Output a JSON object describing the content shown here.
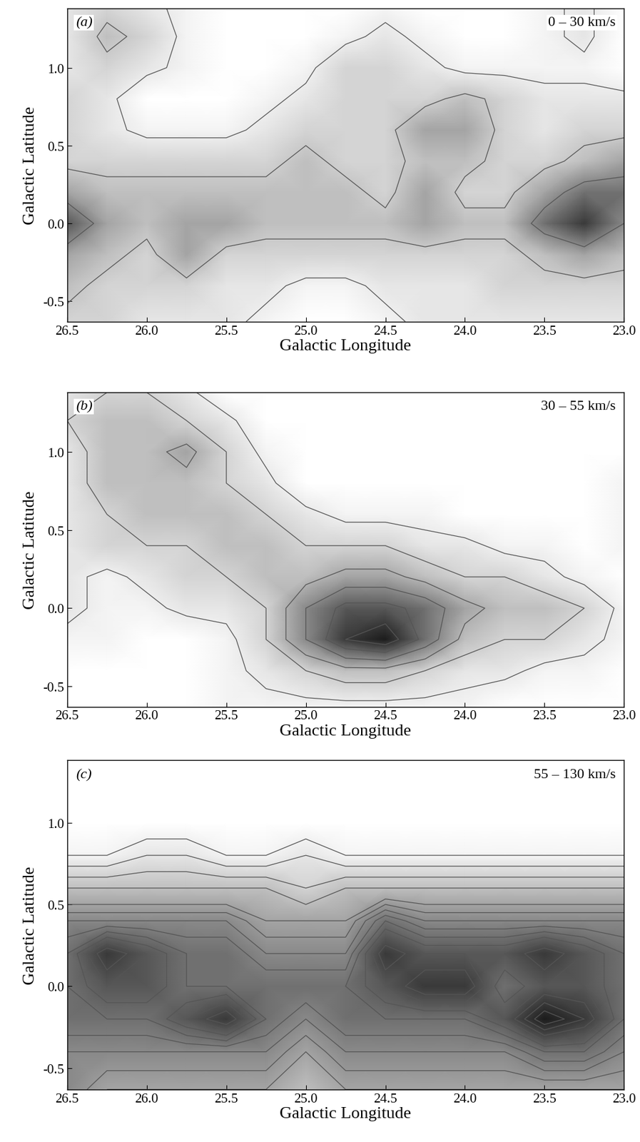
{
  "chart_data": [
    {
      "type": "contour",
      "panel_label": "(a)",
      "annotation": "0 – 30 km/s",
      "x_label": "Galactic Longitude",
      "y_label": "Galactic Latitude",
      "xlim": [
        26.5,
        23.0
      ],
      "ylim": [
        -0.63,
        1.38
      ],
      "xticks": [
        26.5,
        26.0,
        25.5,
        25.0,
        24.5,
        24.0,
        23.5,
        23.0
      ],
      "yticks": [
        -0.5,
        0.0,
        0.5,
        1.0
      ],
      "x": [
        26.5,
        26.25,
        26.0,
        25.75,
        25.5,
        25.25,
        25.0,
        24.75,
        24.5,
        24.25,
        24.0,
        23.75,
        23.5,
        23.25,
        23.0
      ],
      "y": [
        -0.63,
        -0.4,
        -0.2,
        0.0,
        0.2,
        0.4,
        0.6,
        0.8,
        1.0,
        1.2,
        1.38
      ],
      "zlim": [
        0,
        10
      ],
      "levels": [
        1.5,
        3.5,
        6
      ],
      "values": [
        [
          3,
          3,
          2,
          2,
          2,
          1,
          0,
          0,
          1,
          2,
          2,
          2,
          2,
          2,
          2
        ],
        [
          4,
          3,
          3,
          3,
          2,
          2,
          1,
          1,
          2,
          2,
          2,
          3,
          3,
          3,
          3
        ],
        [
          5,
          4,
          3,
          5,
          3,
          3,
          3,
          3,
          3,
          3,
          3,
          3,
          4,
          5,
          4
        ],
        [
          8,
          5,
          4,
          5,
          5,
          4,
          4,
          4,
          4,
          5,
          4,
          4,
          7,
          9,
          6
        ],
        [
          5,
          4,
          4,
          4,
          4,
          4,
          4,
          4,
          3,
          5,
          3,
          3,
          5,
          7,
          7
        ],
        [
          3,
          3,
          3,
          3,
          3,
          3,
          4,
          3,
          3,
          4,
          4,
          3,
          3,
          4,
          5
        ],
        [
          3,
          2,
          1,
          1,
          1,
          2,
          3,
          3,
          3,
          5,
          5,
          3,
          2,
          3,
          3
        ],
        [
          3,
          2,
          0,
          0,
          0,
          1,
          2,
          3,
          3,
          3,
          4,
          3,
          2,
          2,
          2
        ],
        [
          2,
          3,
          2,
          1,
          0,
          0,
          1,
          3,
          3,
          2,
          1,
          1,
          1,
          1,
          0
        ],
        [
          2,
          4,
          3,
          1,
          0,
          0,
          0,
          1,
          2,
          1,
          0,
          0,
          1,
          2,
          0
        ],
        [
          2,
          3,
          2,
          1,
          0,
          0,
          0,
          0,
          1,
          0,
          0,
          0,
          1,
          2,
          0
        ]
      ]
    },
    {
      "type": "contour",
      "panel_label": "(b)",
      "annotation": "30 – 55 km/s",
      "x_label": "Galactic Longitude",
      "y_label": "Galactic Latitude",
      "xlim": [
        26.5,
        23.0
      ],
      "ylim": [
        -0.63,
        1.38
      ],
      "xticks": [
        26.5,
        26.0,
        25.5,
        25.0,
        24.5,
        24.0,
        23.5,
        23.0
      ],
      "yticks": [
        -0.5,
        0.0,
        0.5,
        1.0
      ],
      "x": [
        26.5,
        26.25,
        26.0,
        25.75,
        25.5,
        25.25,
        25.0,
        24.75,
        24.5,
        24.25,
        24.0,
        23.75,
        23.5,
        23.25,
        23.0
      ],
      "y": [
        -0.63,
        -0.4,
        -0.2,
        0.0,
        0.2,
        0.4,
        0.6,
        0.8,
        1.0,
        1.2,
        1.38
      ],
      "zlim": [
        0,
        10
      ],
      "levels": [
        1.5,
        3,
        4.5,
        6,
        7.5,
        9
      ],
      "values": [
        [
          0,
          0,
          0,
          0,
          1,
          1,
          1,
          1,
          1,
          1,
          1,
          0,
          0,
          0,
          0
        ],
        [
          0,
          0,
          0,
          0,
          1,
          2,
          3,
          4,
          4,
          3,
          2,
          2,
          1,
          1,
          0
        ],
        [
          1,
          1,
          0,
          0,
          1,
          3,
          6,
          9,
          10,
          7,
          4,
          3,
          3,
          2,
          1
        ],
        [
          2,
          1,
          1,
          2,
          2,
          3,
          6,
          8,
          8,
          7,
          5,
          4,
          4,
          3,
          1
        ],
        [
          2,
          1,
          2,
          3,
          3,
          4,
          4,
          5,
          5,
          4,
          3,
          3,
          2,
          1,
          0
        ],
        [
          2,
          3,
          3,
          3,
          4,
          4,
          3,
          3,
          3,
          2,
          2,
          1,
          1,
          0,
          1
        ],
        [
          2,
          3,
          4,
          4,
          4,
          3,
          2,
          1,
          1,
          1,
          0,
          0,
          0,
          0,
          1
        ],
        [
          2,
          4,
          4,
          4,
          3,
          2,
          0,
          0,
          0,
          0,
          0,
          0,
          0,
          0,
          1
        ],
        [
          2,
          4,
          4,
          5,
          3,
          1,
          0,
          0,
          0,
          0,
          0,
          0,
          0,
          0,
          0
        ],
        [
          3,
          4,
          4,
          3,
          2,
          0,
          0,
          0,
          0,
          0,
          0,
          0,
          0,
          0,
          0
        ],
        [
          2,
          3,
          3,
          2,
          0,
          0,
          0,
          0,
          0,
          0,
          0,
          0,
          0,
          0,
          0
        ]
      ]
    },
    {
      "type": "contour",
      "panel_label": "(c)",
      "annotation": "55 – 130 km/s",
      "x_label": "Galactic Longitude",
      "y_label": "Galactic Latitude",
      "xlim": [
        26.5,
        23.0
      ],
      "ylim": [
        -0.63,
        1.38
      ],
      "xticks": [
        26.5,
        26.0,
        25.5,
        25.0,
        24.5,
        24.0,
        23.5,
        23.0
      ],
      "yticks": [
        -0.5,
        0.0,
        0.5,
        1.0
      ],
      "x": [
        26.5,
        26.25,
        26.0,
        25.75,
        25.5,
        25.25,
        25.0,
        24.75,
        24.5,
        24.25,
        24.0,
        23.75,
        23.5,
        23.25,
        23.0
      ],
      "y": [
        -0.63,
        -0.4,
        -0.2,
        0.0,
        0.2,
        0.4,
        0.6,
        0.8,
        1.0,
        1.2,
        1.38
      ],
      "zlim": [
        0,
        10
      ],
      "levels": [
        1,
        2,
        3,
        4,
        5,
        5.5,
        6,
        6.5,
        7,
        7.5,
        8,
        8.5,
        9,
        9.5
      ],
      "values": [
        [
          6,
          5,
          5,
          5,
          5,
          5,
          4,
          5,
          5,
          5,
          5,
          5,
          5,
          5,
          5
        ],
        [
          6,
          6,
          6,
          6,
          6,
          6,
          5,
          6,
          6,
          6,
          6,
          6,
          7,
          7,
          6
        ],
        [
          7,
          7,
          7,
          8,
          9,
          7,
          6,
          7,
          7,
          7,
          7,
          8,
          10,
          9,
          7
        ],
        [
          7,
          8,
          8,
          7,
          7,
          7,
          7,
          7,
          8,
          9,
          9,
          7,
          8,
          8,
          7
        ],
        [
          7,
          9,
          8,
          7,
          7,
          6,
          6,
          6,
          9,
          8,
          8,
          8,
          9,
          8,
          7
        ],
        [
          6,
          6,
          6,
          6,
          6,
          5,
          5,
          5,
          7,
          6,
          6,
          6,
          6,
          6,
          6
        ],
        [
          4,
          4,
          4,
          4,
          4,
          4,
          3,
          4,
          4,
          4,
          4,
          4,
          4,
          4,
          4
        ],
        [
          1,
          1,
          2,
          2,
          1,
          1,
          2,
          1,
          1,
          1,
          1,
          1,
          1,
          1,
          1
        ],
        [
          0,
          0,
          0,
          0,
          0,
          0,
          0,
          0,
          0,
          0,
          0,
          0,
          0,
          0,
          0
        ],
        [
          0,
          0,
          0,
          0,
          0,
          0,
          0,
          0,
          0,
          0,
          0,
          0,
          0,
          0,
          0
        ],
        [
          0,
          0,
          0,
          0,
          0,
          0,
          0,
          0,
          0,
          0,
          0,
          0,
          0,
          0,
          0
        ]
      ]
    }
  ]
}
